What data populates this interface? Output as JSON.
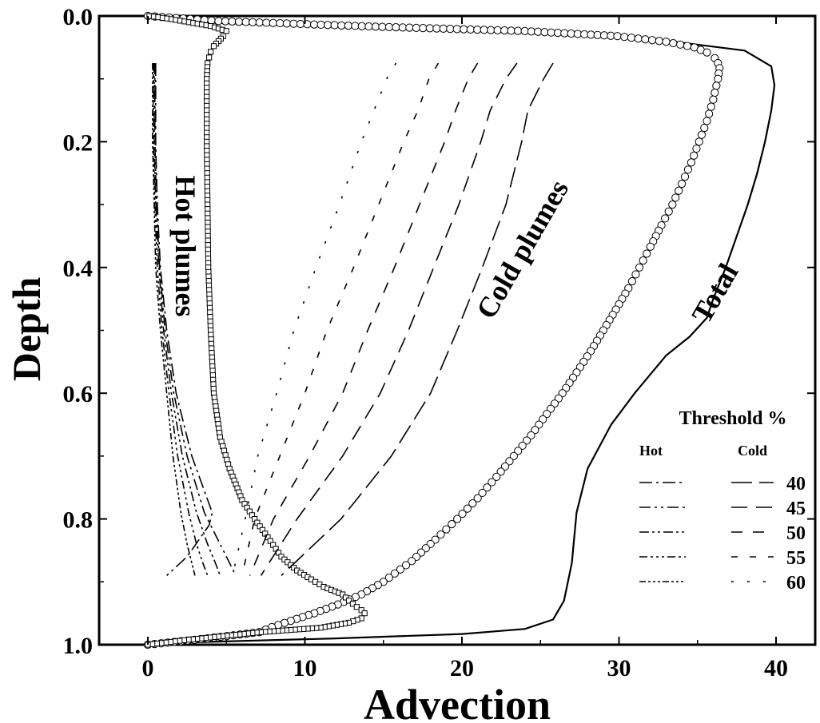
{
  "chart_data": {
    "type": "line",
    "xlabel": "Advection",
    "ylabel": "Depth",
    "xlim": [
      -3,
      44
    ],
    "ylim": [
      1.0,
      0.0
    ],
    "y_inverted": true,
    "x_ticks": [
      "0",
      "10",
      "20",
      "30",
      "40"
    ],
    "x_tick_values": [
      0,
      10,
      20,
      30,
      40
    ],
    "y_ticks": [
      "0.0",
      "0.2",
      "0.4",
      "0.6",
      "0.8",
      "1.0"
    ],
    "y_tick_values": [
      0.0,
      0.2,
      0.4,
      0.6,
      0.8,
      1.0
    ],
    "grid": false,
    "annotations": {
      "hot": "Hot plumes",
      "cold": "Cold plumes",
      "total": "Total"
    },
    "legend": {
      "title": "Threshold %",
      "hot_header": "Hot",
      "cold_header": "Cold",
      "placement": "bottom-right",
      "thresholds": [
        "40",
        "45",
        "50",
        "55",
        "60"
      ]
    },
    "series": [
      {
        "style": "solid",
        "points": [
          [
            0,
            1.0
          ],
          [
            3,
            0.996
          ],
          [
            12,
            0.99
          ],
          [
            20,
            0.983
          ],
          [
            24,
            0.975
          ],
          [
            25.8,
            0.96
          ],
          [
            26.5,
            0.93
          ],
          [
            27,
            0.87
          ],
          [
            27.3,
            0.79
          ],
          [
            28,
            0.72
          ],
          [
            29.5,
            0.65
          ],
          [
            31,
            0.6
          ],
          [
            32,
            0.57
          ],
          [
            33,
            0.54
          ],
          [
            34.5,
            0.51
          ],
          [
            35.6,
            0.48
          ],
          [
            36,
            0.45
          ],
          [
            36.8,
            0.4
          ],
          [
            37.5,
            0.35
          ],
          [
            38.2,
            0.3
          ],
          [
            38.8,
            0.25
          ],
          [
            39.3,
            0.2
          ],
          [
            39.7,
            0.15
          ],
          [
            39.9,
            0.11
          ],
          [
            39.7,
            0.08
          ],
          [
            38,
            0.055
          ],
          [
            30,
            0.03
          ],
          [
            16,
            0.02
          ],
          [
            3,
            0.01
          ],
          [
            0,
            0.0
          ]
        ]
      },
      {
        "style": "circles",
        "points": [
          [
            0,
            0.0
          ],
          [
            4.5,
            0.008
          ],
          [
            14.5,
            0.017
          ],
          [
            24,
            0.024
          ],
          [
            29.9,
            0.032
          ],
          [
            33,
            0.041
          ],
          [
            34.8,
            0.05
          ],
          [
            35.6,
            0.058
          ],
          [
            36.1,
            0.067
          ],
          [
            36.3,
            0.075
          ],
          [
            36.4,
            0.083
          ],
          [
            36.3,
            0.1
          ],
          [
            36,
            0.133
          ],
          [
            35.6,
            0.167
          ],
          [
            35.1,
            0.2
          ],
          [
            34.6,
            0.233
          ],
          [
            34,
            0.267
          ],
          [
            33.4,
            0.3
          ],
          [
            32.7,
            0.333
          ],
          [
            32,
            0.367
          ],
          [
            31.3,
            0.4
          ],
          [
            30.6,
            0.433
          ],
          [
            29.8,
            0.467
          ],
          [
            29,
            0.5
          ],
          [
            28.2,
            0.533
          ],
          [
            27.3,
            0.567
          ],
          [
            26.4,
            0.6
          ],
          [
            25.4,
            0.633
          ],
          [
            24.4,
            0.667
          ],
          [
            23.3,
            0.7
          ],
          [
            22.2,
            0.733
          ],
          [
            21,
            0.767
          ],
          [
            19.7,
            0.8
          ],
          [
            18.3,
            0.833
          ],
          [
            16.8,
            0.867
          ],
          [
            15,
            0.9
          ],
          [
            13.6,
            0.92
          ],
          [
            12.1,
            0.936
          ],
          [
            10.6,
            0.95
          ],
          [
            9.1,
            0.962
          ],
          [
            7.9,
            0.972
          ],
          [
            7.1,
            0.98
          ],
          [
            3.8,
            0.99
          ],
          [
            0,
            1.0
          ]
        ]
      },
      {
        "style": "squares",
        "points": [
          [
            0.1,
            0.0
          ],
          [
            1.5,
            0.005
          ],
          [
            4.0,
            0.016
          ],
          [
            5.0,
            0.024
          ],
          [
            4.8,
            0.032
          ],
          [
            4.5,
            0.04
          ],
          [
            4.2,
            0.048
          ],
          [
            4.0,
            0.057
          ],
          [
            3.9,
            0.066
          ],
          [
            3.8,
            0.075
          ],
          [
            3.75,
            0.1
          ],
          [
            3.75,
            0.2
          ],
          [
            3.8,
            0.3
          ],
          [
            3.85,
            0.4
          ],
          [
            4.0,
            0.5
          ],
          [
            4.2,
            0.6
          ],
          [
            4.6,
            0.67
          ],
          [
            5.2,
            0.72
          ],
          [
            6.0,
            0.77
          ],
          [
            6.8,
            0.8
          ],
          [
            7.8,
            0.835
          ],
          [
            8.5,
            0.86
          ],
          [
            9.5,
            0.882
          ],
          [
            10.4,
            0.896
          ],
          [
            11.2,
            0.908
          ],
          [
            12.4,
            0.92
          ],
          [
            12.8,
            0.93
          ],
          [
            13.3,
            0.94
          ],
          [
            13.6,
            0.945
          ],
          [
            13.8,
            0.95
          ],
          [
            13.6,
            0.958
          ],
          [
            12.8,
            0.965
          ],
          [
            11,
            0.973
          ],
          [
            7.2,
            0.98
          ],
          [
            2.6,
            0.992
          ],
          [
            0,
            1.0
          ]
        ]
      },
      {
        "style": "cold-40",
        "points": [
          [
            25.8,
            0.075
          ],
          [
            25.2,
            0.1
          ],
          [
            24.2,
            0.15
          ],
          [
            23.8,
            0.2
          ],
          [
            22.8,
            0.3
          ],
          [
            21.3,
            0.4
          ],
          [
            19.7,
            0.5
          ],
          [
            18,
            0.6
          ],
          [
            15.5,
            0.7
          ],
          [
            12.3,
            0.8
          ],
          [
            8.5,
            0.89
          ]
        ]
      },
      {
        "style": "cold-45",
        "points": [
          [
            23.5,
            0.075
          ],
          [
            22.8,
            0.1
          ],
          [
            21.8,
            0.15
          ],
          [
            21.2,
            0.2
          ],
          [
            19.8,
            0.3
          ],
          [
            18.2,
            0.4
          ],
          [
            16.6,
            0.5
          ],
          [
            14.8,
            0.6
          ],
          [
            12.4,
            0.7
          ],
          [
            9.5,
            0.8
          ],
          [
            7.2,
            0.89
          ]
        ]
      },
      {
        "style": "cold-50",
        "points": [
          [
            21.0,
            0.075
          ],
          [
            20.4,
            0.1
          ],
          [
            19.6,
            0.15
          ],
          [
            18.9,
            0.2
          ],
          [
            17.3,
            0.3
          ],
          [
            15.7,
            0.4
          ],
          [
            14.0,
            0.5
          ],
          [
            12.4,
            0.6
          ],
          [
            10.3,
            0.7
          ],
          [
            8.0,
            0.8
          ],
          [
            6.5,
            0.89
          ]
        ]
      },
      {
        "style": "cold-55",
        "points": [
          [
            18.5,
            0.075
          ],
          [
            17.9,
            0.1
          ],
          [
            17.2,
            0.15
          ],
          [
            16.3,
            0.2
          ],
          [
            14.7,
            0.3
          ],
          [
            13.1,
            0.4
          ],
          [
            11.4,
            0.5
          ],
          [
            10.0,
            0.6
          ],
          [
            8.4,
            0.7
          ],
          [
            6.8,
            0.8
          ],
          [
            6.0,
            0.89
          ]
        ]
      },
      {
        "style": "cold-60",
        "points": [
          [
            15.8,
            0.075
          ],
          [
            15.2,
            0.1
          ],
          [
            14.4,
            0.15
          ],
          [
            13.6,
            0.2
          ],
          [
            12.2,
            0.3
          ],
          [
            10.7,
            0.4
          ],
          [
            9.3,
            0.5
          ],
          [
            8.2,
            0.6
          ],
          [
            7.0,
            0.7
          ],
          [
            6.2,
            0.8
          ],
          [
            5.4,
            0.89
          ]
        ]
      },
      {
        "style": "hot-40",
        "points": [
          [
            0.5,
            0.075
          ],
          [
            0.5,
            0.2
          ],
          [
            0.6,
            0.3
          ],
          [
            0.8,
            0.4
          ],
          [
            1.2,
            0.5
          ],
          [
            1.8,
            0.6
          ],
          [
            2.8,
            0.7
          ],
          [
            4.1,
            0.79
          ],
          [
            3.9,
            0.81
          ],
          [
            2.5,
            0.86
          ],
          [
            1.2,
            0.89
          ]
        ]
      },
      {
        "style": "hot-45",
        "points": [
          [
            0.45,
            0.075
          ],
          [
            0.45,
            0.2
          ],
          [
            0.55,
            0.3
          ],
          [
            0.75,
            0.4
          ],
          [
            1.1,
            0.5
          ],
          [
            1.65,
            0.6
          ],
          [
            2.5,
            0.7
          ],
          [
            3.6,
            0.79
          ],
          [
            4.6,
            0.84
          ],
          [
            5.2,
            0.87
          ],
          [
            5.6,
            0.89
          ]
        ]
      },
      {
        "style": "hot-50",
        "points": [
          [
            0.4,
            0.075
          ],
          [
            0.4,
            0.2
          ],
          [
            0.5,
            0.3
          ],
          [
            0.7,
            0.4
          ],
          [
            1.0,
            0.5
          ],
          [
            1.5,
            0.6
          ],
          [
            2.2,
            0.7
          ],
          [
            3.1,
            0.79
          ],
          [
            3.8,
            0.84
          ],
          [
            4.3,
            0.87
          ],
          [
            4.6,
            0.89
          ]
        ]
      },
      {
        "style": "hot-55",
        "points": [
          [
            0.35,
            0.075
          ],
          [
            0.35,
            0.2
          ],
          [
            0.45,
            0.3
          ],
          [
            0.6,
            0.4
          ],
          [
            0.9,
            0.5
          ],
          [
            1.35,
            0.6
          ],
          [
            1.9,
            0.7
          ],
          [
            2.6,
            0.79
          ],
          [
            3.1,
            0.84
          ],
          [
            3.5,
            0.87
          ],
          [
            3.8,
            0.89
          ]
        ]
      },
      {
        "style": "hot-60",
        "points": [
          [
            0.3,
            0.075
          ],
          [
            0.3,
            0.2
          ],
          [
            0.4,
            0.3
          ],
          [
            0.5,
            0.4
          ],
          [
            0.8,
            0.5
          ],
          [
            1.2,
            0.6
          ],
          [
            1.6,
            0.7
          ],
          [
            2.1,
            0.79
          ],
          [
            2.5,
            0.84
          ],
          [
            2.8,
            0.87
          ],
          [
            3.0,
            0.89
          ]
        ]
      }
    ]
  }
}
